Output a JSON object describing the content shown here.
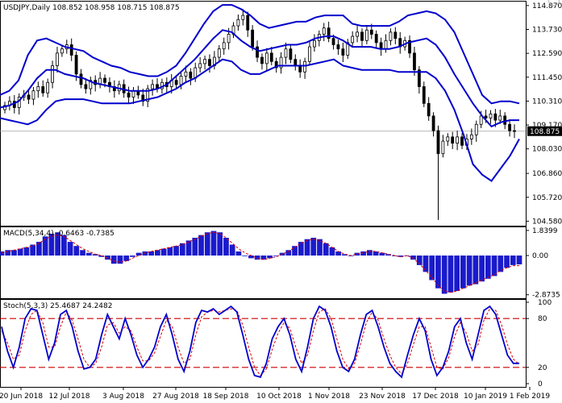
{
  "chart_data": {
    "type": "candlestick",
    "symbol_label": "USDJPY,Daily",
    "ohlc_values": [
      "108.852",
      "108.958",
      "108.715",
      "108.875"
    ],
    "current_price": 108.875,
    "current_price_label": "108.875",
    "price_ticks": [
      114.87,
      113.73,
      112.59,
      111.45,
      110.31,
      109.17,
      108.03,
      106.86,
      105.72,
      104.58
    ],
    "price_tick_labels": [
      "114.870",
      "113.730",
      "112.590",
      "111.450",
      "110.310",
      "109.170",
      "108.030",
      "106.860",
      "105.720",
      "104.580"
    ],
    "price_range": [
      104.48,
      114.98
    ],
    "x_labels": [
      "20 Jun 2018",
      "12 Jul 2018",
      "3 Aug 2018",
      "27 Aug 2018",
      "18 Sep 2018",
      "10 Oct 2018",
      "1 Nov 2018",
      "23 Nov 2018",
      "17 Dec 2018",
      "10 Jan 2019",
      "1 Feb 2019"
    ],
    "candles_close_estimate": [
      110.1,
      110.3,
      110.0,
      110.5,
      110.6,
      110.4,
      110.8,
      111.0,
      110.7,
      111.2,
      112.0,
      112.6,
      112.8,
      113.0,
      112.5,
      111.6,
      111.1,
      110.9,
      111.3,
      111.1,
      111.4,
      111.2,
      111.0,
      110.8,
      111.1,
      110.7,
      110.5,
      110.8,
      110.6,
      110.3,
      110.9,
      111.1,
      110.9,
      111.2,
      111.0,
      111.3,
      111.1,
      111.5,
      111.7,
      111.4,
      111.9,
      112.1,
      112.3,
      112.0,
      112.4,
      112.8,
      113.1,
      113.5,
      113.9,
      114.2,
      114.4,
      113.7,
      112.9,
      112.4,
      112.1,
      112.6,
      112.2,
      111.9,
      112.4,
      112.8,
      112.3,
      112.0,
      111.7,
      112.2,
      112.9,
      113.2,
      113.5,
      113.8,
      113.3,
      113.0,
      112.8,
      112.5,
      113.1,
      113.4,
      113.6,
      113.2,
      113.7,
      113.5,
      113.1,
      112.8,
      113.2,
      113.6,
      113.3,
      112.9,
      113.2,
      112.6,
      111.8,
      111.0,
      110.2,
      109.6,
      108.9,
      107.8,
      108.4,
      108.6,
      108.3,
      108.6,
      108.2,
      108.5,
      108.7,
      109.2,
      109.6,
      109.5,
      109.7,
      109.4,
      109.6,
      109.2,
      108.9,
      108.875
    ],
    "bollinger_bands": {
      "upper": [
        110.6,
        110.8,
        111.3,
        112.5,
        113.2,
        113.3,
        113.1,
        112.9,
        112.8,
        112.7,
        112.4,
        112.2,
        112.0,
        111.9,
        111.7,
        111.6,
        111.5,
        111.5,
        111.7,
        112.0,
        112.6,
        113.3,
        114.0,
        114.6,
        114.9,
        114.9,
        114.7,
        114.4,
        114.0,
        113.8,
        113.9,
        114.0,
        114.1,
        114.1,
        114.3,
        114.4,
        114.4,
        114.4,
        114.0,
        113.9,
        113.9,
        113.9,
        113.9,
        114.1,
        114.4,
        114.5,
        114.6,
        114.5,
        114.2,
        113.6,
        112.6,
        111.6,
        110.6,
        110.2,
        110.3,
        110.3,
        110.2
      ],
      "middle": [
        110.0,
        110.1,
        110.3,
        110.8,
        111.4,
        111.8,
        111.8,
        111.6,
        111.5,
        111.4,
        111.2,
        111.1,
        111.0,
        110.9,
        110.8,
        110.8,
        110.8,
        110.9,
        111.1,
        111.5,
        111.9,
        112.3,
        112.8,
        113.3,
        113.7,
        113.6,
        113.2,
        112.9,
        112.7,
        112.8,
        112.9,
        113.0,
        113.0,
        113.1,
        113.3,
        113.4,
        113.4,
        113.2,
        112.9,
        112.9,
        112.9,
        112.8,
        112.8,
        112.9,
        113.1,
        113.2,
        113.3,
        113.0,
        112.4,
        111.6,
        110.9,
        110.2,
        109.6,
        109.1,
        109.3,
        109.4,
        109.4
      ],
      "lower": [
        109.5,
        109.4,
        109.3,
        109.2,
        109.4,
        109.9,
        110.3,
        110.4,
        110.4,
        110.4,
        110.3,
        110.2,
        110.2,
        110.2,
        110.2,
        110.3,
        110.4,
        110.5,
        110.7,
        110.9,
        111.2,
        111.4,
        111.7,
        112.0,
        112.3,
        112.2,
        111.8,
        111.6,
        111.6,
        111.8,
        112.0,
        112.0,
        112.0,
        112.0,
        112.1,
        112.2,
        112.3,
        112.0,
        111.9,
        111.8,
        111.8,
        111.8,
        111.8,
        111.7,
        111.7,
        111.7,
        111.7,
        111.4,
        110.8,
        109.9,
        108.7,
        107.3,
        106.8,
        106.5,
        107.1,
        107.7,
        108.5
      ]
    },
    "macd": {
      "label": "MACD(5,34,4)",
      "values_label": "-0.6463 -0.7385",
      "ticks": [
        1.8399,
        0.0,
        -2.8735
      ],
      "tick_labels": [
        "1.8399",
        "0.00",
        "-2.8735"
      ],
      "range": [
        -2.95,
        1.95
      ],
      "histogram": [
        0.3,
        0.4,
        0.4,
        0.5,
        0.6,
        0.8,
        1.0,
        1.4,
        1.6,
        1.7,
        1.5,
        1.0,
        0.7,
        0.4,
        0.2,
        0.1,
        -0.1,
        -0.3,
        -0.6,
        -0.6,
        -0.4,
        -0.1,
        0.2,
        0.3,
        0.3,
        0.4,
        0.5,
        0.6,
        0.7,
        0.9,
        1.1,
        1.3,
        1.5,
        1.7,
        1.8,
        1.7,
        1.3,
        0.8,
        0.3,
        0.0,
        -0.2,
        -0.3,
        -0.3,
        -0.2,
        0.0,
        0.2,
        0.4,
        0.7,
        1.0,
        1.2,
        1.3,
        1.2,
        0.9,
        0.6,
        0.3,
        0.1,
        0.0,
        0.2,
        0.3,
        0.4,
        0.3,
        0.2,
        0.1,
        0.0,
        -0.1,
        0.0,
        -0.3,
        -0.7,
        -1.2,
        -1.8,
        -2.4,
        -2.8,
        -2.7,
        -2.6,
        -2.4,
        -2.2,
        -2.1,
        -1.9,
        -1.7,
        -1.5,
        -1.2,
        -0.9,
        -0.7,
        -0.65
      ],
      "signal": [
        0.2,
        0.3,
        0.4,
        0.5,
        0.6,
        0.7,
        0.9,
        1.2,
        1.4,
        1.5,
        1.4,
        1.1,
        0.8,
        0.5,
        0.3,
        0.1,
        0.0,
        -0.2,
        -0.4,
        -0.5,
        -0.4,
        -0.2,
        0.0,
        0.2,
        0.3,
        0.4,
        0.5,
        0.6,
        0.7,
        0.8,
        1.0,
        1.2,
        1.4,
        1.6,
        1.7,
        1.6,
        1.3,
        0.9,
        0.5,
        0.2,
        0.0,
        -0.2,
        -0.3,
        -0.2,
        -0.1,
        0.1,
        0.3,
        0.6,
        0.9,
        1.1,
        1.2,
        1.1,
        0.9,
        0.6,
        0.3,
        0.1,
        0.0,
        0.1,
        0.2,
        0.3,
        0.3,
        0.2,
        0.1,
        0.0,
        -0.1,
        0.0,
        -0.2,
        -0.6,
        -1.1,
        -1.6,
        -2.2,
        -2.6,
        -2.7,
        -2.6,
        -2.4,
        -2.2,
        -2.0,
        -1.8,
        -1.6,
        -1.4,
        -1.1,
        -0.9,
        -0.75,
        -0.74
      ]
    },
    "stochastic": {
      "label": "Stoch(5,3,3)",
      "values_label": "25.4687 24.2482",
      "ticks": [
        100,
        80,
        20,
        0
      ],
      "tick_labels": [
        "100",
        "80",
        "20",
        "0"
      ],
      "levels": [
        80,
        20
      ],
      "range": [
        0,
        100
      ],
      "main": [
        70,
        40,
        20,
        45,
        80,
        92,
        90,
        60,
        30,
        50,
        85,
        90,
        70,
        40,
        18,
        20,
        30,
        60,
        85,
        70,
        55,
        80,
        60,
        35,
        20,
        30,
        45,
        70,
        85,
        60,
        30,
        15,
        40,
        75,
        90,
        88,
        92,
        85,
        90,
        95,
        88,
        60,
        30,
        10,
        8,
        25,
        55,
        70,
        80,
        60,
        30,
        15,
        45,
        80,
        95,
        90,
        70,
        40,
        20,
        15,
        30,
        60,
        85,
        90,
        70,
        45,
        25,
        15,
        8,
        35,
        60,
        80,
        65,
        30,
        10,
        20,
        40,
        70,
        80,
        50,
        30,
        60,
        90,
        95,
        85,
        60,
        35,
        25,
        25
      ],
      "signal": [
        65,
        50,
        30,
        35,
        65,
        85,
        90,
        75,
        45,
        45,
        70,
        88,
        78,
        55,
        30,
        20,
        25,
        45,
        72,
        75,
        62,
        70,
        65,
        45,
        28,
        28,
        38,
        58,
        78,
        70,
        45,
        25,
        30,
        60,
        82,
        88,
        90,
        88,
        90,
        92,
        90,
        72,
        45,
        20,
        10,
        18,
        42,
        62,
        75,
        68,
        45,
        25,
        35,
        65,
        88,
        92,
        80,
        55,
        30,
        18,
        25,
        48,
        75,
        88,
        78,
        55,
        35,
        20,
        12,
        25,
        48,
        70,
        70,
        45,
        20,
        18,
        32,
        58,
        75,
        62,
        40,
        48,
        78,
        92,
        90,
        72,
        48,
        30,
        24
      ]
    }
  }
}
